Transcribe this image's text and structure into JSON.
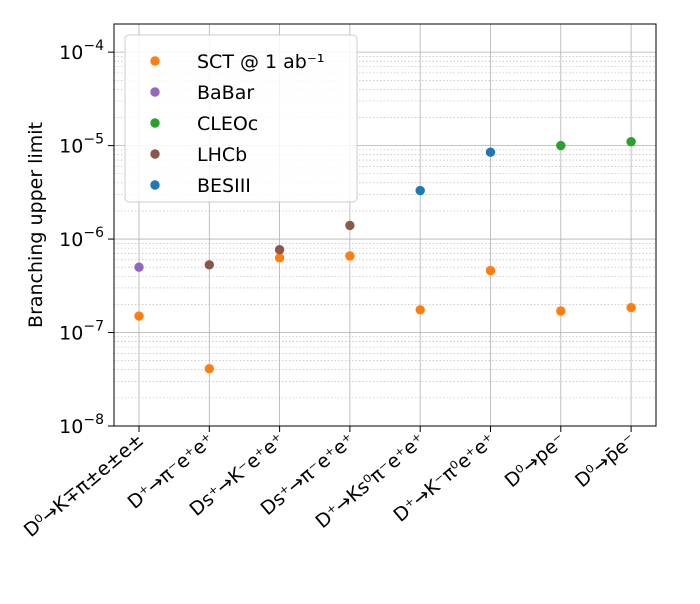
{
  "chart_data": {
    "type": "scatter",
    "ylabel": "Branching upper limit",
    "yscale": "log",
    "ylim": [
      1e-08,
      0.0002
    ],
    "y_ticks": [
      {
        "value": 1e-08,
        "base": "10",
        "exp": "−8"
      },
      {
        "value": 1e-07,
        "base": "10",
        "exp": "−7"
      },
      {
        "value": 1e-06,
        "base": "10",
        "exp": "−6"
      },
      {
        "value": 1e-05,
        "base": "10",
        "exp": "−5"
      },
      {
        "value": 0.0001,
        "base": "10",
        "exp": "−4"
      }
    ],
    "grid": "both",
    "legend_position": "upper-left",
    "categories": [
      "D⁰→K∓π±e±e±",
      "D⁺→π⁻e⁺e⁺",
      "Ds⁺→K⁻e⁺e⁺",
      "Ds⁺→π⁻e⁺e⁺",
      "D⁺→Ks⁰π⁻e⁺e⁺",
      "D⁺→K⁻π⁰e⁺e⁺",
      "D⁰→pe⁻",
      "D⁰→p̄e⁻"
    ],
    "series": [
      {
        "name": "SCT @ 1 ab⁻¹",
        "color": "#ff7f0e",
        "points": [
          [
            0,
            1.5e-07
          ],
          [
            1,
            4.1e-08
          ],
          [
            2,
            6.3e-07
          ],
          [
            3,
            6.6e-07
          ],
          [
            4,
            1.75e-07
          ],
          [
            5,
            4.6e-07
          ],
          [
            6,
            1.7e-07
          ],
          [
            7,
            1.85e-07
          ]
        ]
      },
      {
        "name": "BaBar",
        "color": "#9467bd",
        "points": [
          [
            0,
            5e-07
          ]
        ]
      },
      {
        "name": "CLEOc",
        "color": "#2ca02c",
        "points": [
          [
            6,
            1e-05
          ],
          [
            7,
            1.1e-05
          ]
        ]
      },
      {
        "name": "LHCb",
        "color": "#8c564b",
        "points": [
          [
            1,
            5.3e-07
          ],
          [
            2,
            7.7e-07
          ],
          [
            3,
            1.4e-06
          ]
        ]
      },
      {
        "name": "BESIII",
        "color": "#1f77b4",
        "points": [
          [
            4,
            3.3e-06
          ],
          [
            5,
            8.5e-06
          ]
        ]
      }
    ]
  }
}
